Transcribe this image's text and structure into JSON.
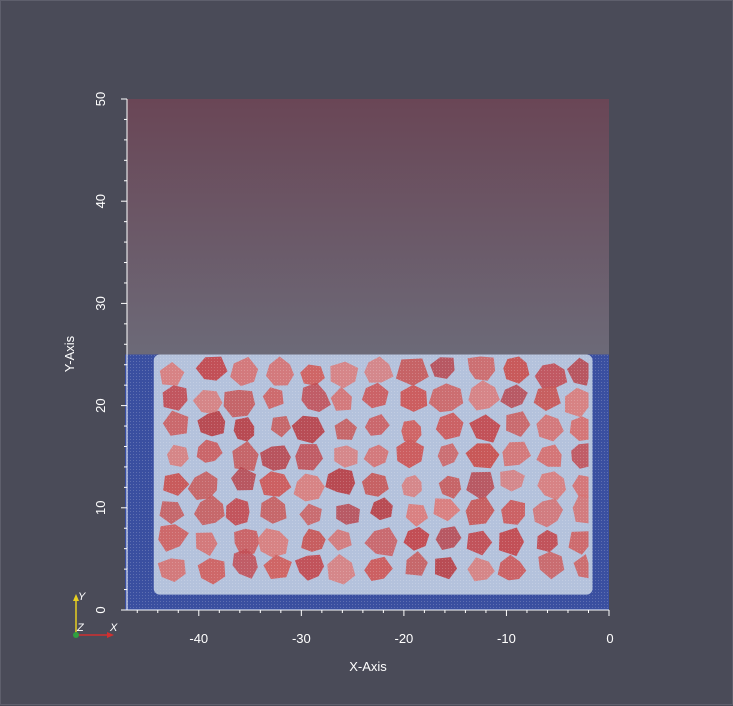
{
  "window": {
    "background": "#4a4b58"
  },
  "render": {
    "domain_region_top_color": "#6e5060",
    "domain_region_mid_color": "#6c6a78",
    "particle_bed_color": "#3a4fa0",
    "grain_color": "#c95a5a",
    "boundary_color": "#b8c8e0"
  },
  "chart_data": {
    "type": "scatter",
    "title": "",
    "xlabel": "X-Axis",
    "ylabel": "Y-Axis",
    "xlim": [
      -47,
      0
    ],
    "ylim": [
      0,
      50
    ],
    "x_ticks": [
      "-40",
      "-30",
      "-20",
      "-10",
      "0"
    ],
    "x_tick_values": [
      -40,
      -30,
      -20,
      -10,
      0
    ],
    "y_ticks": [
      "0",
      "10",
      "20",
      "30",
      "40",
      "50"
    ],
    "y_tick_values": [
      0,
      10,
      20,
      30,
      40,
      50
    ],
    "bed_top_y": 25,
    "grain_region": {
      "x_min": -44,
      "x_max": -2,
      "y_min": 1.5,
      "y_max": 25
    }
  },
  "orientation_triad": {
    "y_label": "Y",
    "z_label": "Z",
    "x_label": "X",
    "y_color": "#e8d020",
    "x_color": "#d03030",
    "z_color": "#30a040"
  }
}
